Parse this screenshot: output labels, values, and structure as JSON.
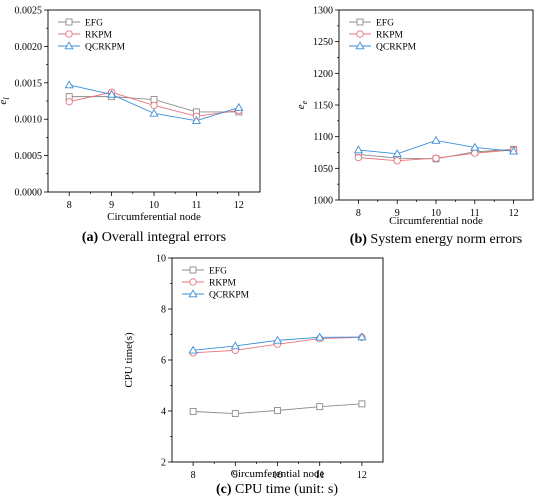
{
  "chart_data": [
    {
      "type": "line",
      "panel": "a",
      "caption_prefix": "(a)",
      "caption_text": "Overall integral errors",
      "xlabel": "Circumferential node",
      "ylabel": "e",
      "ylabel_sub": "l",
      "x": [
        8,
        9,
        10,
        11,
        12
      ],
      "xlim": [
        7.5,
        12.5
      ],
      "ylim": [
        0,
        0.0025
      ],
      "yticks": [
        0,
        0.0005,
        0.001,
        0.0015,
        0.002,
        0.0025
      ],
      "yticklabels": [
        "0.0000",
        "0.0005",
        "0.0010",
        "0.0015",
        "0.0020",
        "0.0025"
      ],
      "legend": "top-left",
      "series": [
        {
          "name": "EFG",
          "marker": "square",
          "color": "#8c8c8c",
          "values": [
            0.00131,
            0.00131,
            0.00127,
            0.0011,
            0.0011
          ]
        },
        {
          "name": "RKPM",
          "marker": "circle",
          "color": "#e8737a",
          "values": [
            0.00124,
            0.00137,
            0.00119,
            0.00104,
            0.00112
          ]
        },
        {
          "name": "QCRKPM",
          "marker": "triangle",
          "color": "#3a8fd9",
          "values": [
            0.00147,
            0.00134,
            0.00108,
            0.00098,
            0.00116
          ]
        }
      ]
    },
    {
      "type": "line",
      "panel": "b",
      "caption_prefix": "(b)",
      "caption_text": "System energy norm errors",
      "xlabel": "Circumferential node",
      "ylabel": "e",
      "ylabel_sub": "e",
      "x": [
        8,
        9,
        10,
        11,
        12
      ],
      "xlim": [
        7.5,
        12.5
      ],
      "ylim": [
        1000,
        1300
      ],
      "yticks": [
        1000,
        1050,
        1100,
        1150,
        1200,
        1250,
        1300
      ],
      "yticklabels": [
        "1000",
        "1050",
        "1100",
        "1150",
        "1200",
        "1250",
        "1300"
      ],
      "legend": "top-left",
      "series": [
        {
          "name": "EFG",
          "marker": "square",
          "color": "#8c8c8c",
          "values": [
            1072,
            1066,
            1065,
            1076,
            1080
          ]
        },
        {
          "name": "RKPM",
          "marker": "circle",
          "color": "#e8737a",
          "values": [
            1067,
            1062,
            1066,
            1074,
            1079
          ]
        },
        {
          "name": "QCRKPM",
          "marker": "triangle",
          "color": "#3a8fd9",
          "values": [
            1079,
            1073,
            1094,
            1083,
            1077
          ]
        }
      ]
    },
    {
      "type": "line",
      "panel": "c",
      "caption_prefix": "(c)",
      "caption_text": "CPU time (unit: s)",
      "xlabel": "Circumferential node",
      "ylabel": "CPU time(s)",
      "ylabel_sub": "",
      "x": [
        8,
        9,
        10,
        11,
        12
      ],
      "xlim": [
        7.5,
        12.5
      ],
      "ylim": [
        2,
        10
      ],
      "yticks": [
        2,
        4,
        6,
        8,
        10
      ],
      "yticklabels": [
        "2",
        "4",
        "6",
        "8",
        "10"
      ],
      "legend": "top-left",
      "series": [
        {
          "name": "EFG",
          "marker": "square",
          "color": "#8c8c8c",
          "values": [
            3.98,
            3.9,
            4.02,
            4.17,
            4.28
          ]
        },
        {
          "name": "RKPM",
          "marker": "circle",
          "color": "#e8737a",
          "values": [
            6.28,
            6.38,
            6.62,
            6.84,
            6.89
          ]
        },
        {
          "name": "QCRKPM",
          "marker": "triangle",
          "color": "#3a8fd9",
          "values": [
            6.38,
            6.55,
            6.77,
            6.89,
            6.9
          ]
        }
      ]
    }
  ]
}
